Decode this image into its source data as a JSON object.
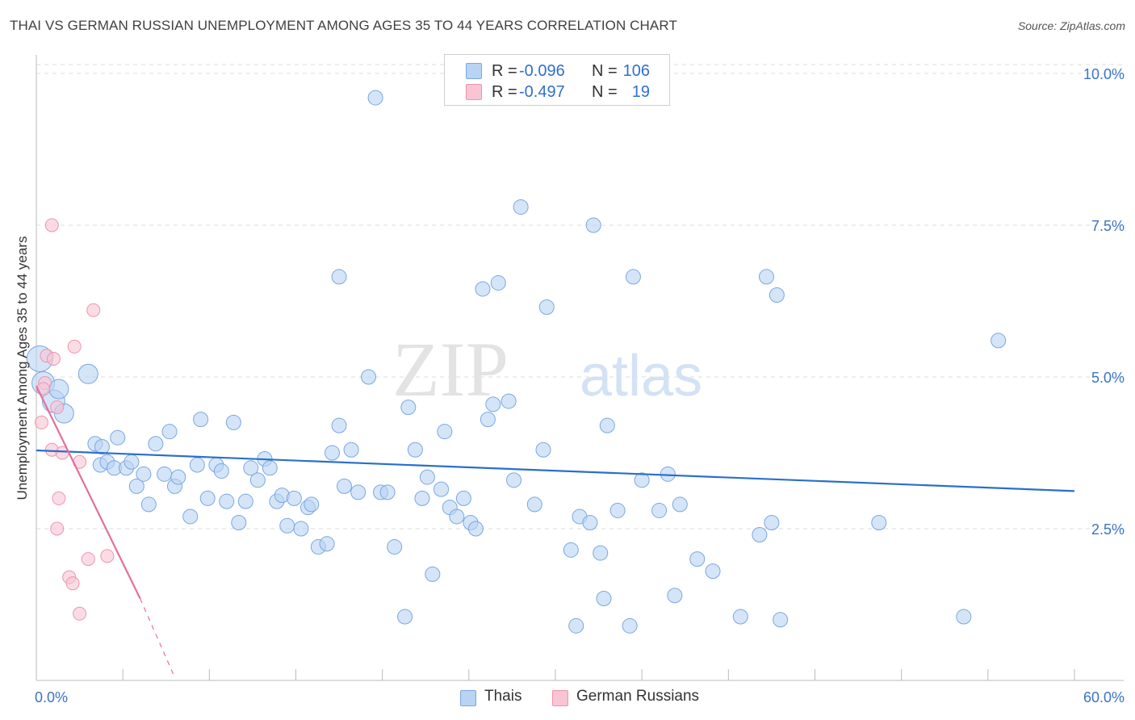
{
  "title": "THAI VS GERMAN RUSSIAN UNEMPLOYMENT AMONG AGES 35 TO 44 YEARS CORRELATION CHART",
  "source": "Source: ZipAtlas.com",
  "watermark": {
    "zip": "ZIP",
    "atlas": "atlas"
  },
  "legend": {
    "rows": [
      {
        "r_label": "R =",
        "r_value": "-0.096",
        "n_label": "N =",
        "n_value": "106"
      },
      {
        "r_label": "R =",
        "r_value": "-0.497",
        "n_label": "N =",
        "n_value": "19"
      }
    ]
  },
  "bottom_legend": {
    "thais": "Thais",
    "german_russians": "German Russians"
  },
  "colors": {
    "thais_fill": "#b9d3f3",
    "thais_stroke": "#7aa7e0",
    "thais_line": "#2a6fcc",
    "gr_fill": "#f9c4d4",
    "gr_stroke": "#ee94b0",
    "gr_line": "#e0709a",
    "axis_text": "#3a73c8",
    "grid": "#dddddd"
  },
  "chart_data": {
    "type": "scatter",
    "title": "THAI VS GERMAN RUSSIAN UNEMPLOYMENT AMONG AGES 35 TO 44 YEARS CORRELATION CHART",
    "xlabel": "",
    "ylabel": "Unemployment Among Ages 35 to 44 years",
    "xlim": [
      0,
      60
    ],
    "ylim": [
      0,
      10
    ],
    "x_tick_labels": [
      "0.0%",
      "60.0%"
    ],
    "y_ticks": [
      2.5,
      5.0,
      7.5,
      10.0
    ],
    "y_tick_labels": [
      "2.5%",
      "5.0%",
      "7.5%",
      "10.0%"
    ],
    "grid": true,
    "legend_position": "top-center",
    "series": [
      {
        "name": "Thais",
        "r": -0.096,
        "n": 106,
        "trend": {
          "x0": 0,
          "y0": 3.79,
          "x1": 60,
          "y1": 3.12
        },
        "points": [
          [
            0.2,
            5.3,
            3
          ],
          [
            0.4,
            4.9,
            2
          ],
          [
            1.0,
            4.6,
            2
          ],
          [
            1.3,
            4.8,
            1
          ],
          [
            1.6,
            4.4,
            1
          ],
          [
            3.0,
            5.05,
            1
          ],
          [
            3.4,
            3.9,
            0
          ],
          [
            3.7,
            3.55,
            0
          ],
          [
            3.8,
            3.85,
            0
          ],
          [
            4.1,
            3.6,
            0
          ],
          [
            4.5,
            3.5,
            0
          ],
          [
            4.7,
            4.0,
            0
          ],
          [
            5.2,
            3.5,
            0
          ],
          [
            5.5,
            3.6,
            0
          ],
          [
            5.8,
            3.2,
            0
          ],
          [
            6.2,
            3.4,
            0
          ],
          [
            6.5,
            2.9,
            0
          ],
          [
            6.9,
            3.9,
            0
          ],
          [
            7.4,
            3.4,
            0
          ],
          [
            7.7,
            4.1,
            0
          ],
          [
            8.0,
            3.2,
            0
          ],
          [
            8.2,
            3.35,
            0
          ],
          [
            8.9,
            2.7,
            0
          ],
          [
            9.3,
            3.55,
            0
          ],
          [
            9.5,
            4.3,
            0
          ],
          [
            9.9,
            3.0,
            0
          ],
          [
            10.4,
            3.55,
            0
          ],
          [
            10.7,
            3.45,
            0
          ],
          [
            11.0,
            2.95,
            0
          ],
          [
            11.4,
            4.25,
            0
          ],
          [
            11.7,
            2.6,
            0
          ],
          [
            12.1,
            2.95,
            0
          ],
          [
            12.4,
            3.5,
            0
          ],
          [
            12.8,
            3.3,
            0
          ],
          [
            13.2,
            3.65,
            0
          ],
          [
            13.5,
            3.5,
            0
          ],
          [
            13.9,
            2.95,
            0
          ],
          [
            14.2,
            3.05,
            0
          ],
          [
            14.5,
            2.55,
            0
          ],
          [
            14.9,
            3.0,
            0
          ],
          [
            15.3,
            2.5,
            0
          ],
          [
            15.7,
            2.85,
            0
          ],
          [
            15.9,
            2.9,
            0
          ],
          [
            16.3,
            2.2,
            0
          ],
          [
            16.8,
            2.25,
            0
          ],
          [
            17.1,
            3.75,
            0
          ],
          [
            17.5,
            4.2,
            0
          ],
          [
            17.5,
            6.65,
            0
          ],
          [
            17.8,
            3.2,
            0
          ],
          [
            18.2,
            3.8,
            0
          ],
          [
            18.6,
            3.1,
            0
          ],
          [
            19.2,
            5.0,
            0
          ],
          [
            19.6,
            9.6,
            0
          ],
          [
            19.9,
            3.1,
            0
          ],
          [
            20.3,
            3.1,
            0
          ],
          [
            20.7,
            2.2,
            0
          ],
          [
            21.3,
            1.05,
            0
          ],
          [
            21.5,
            4.5,
            0
          ],
          [
            21.9,
            3.8,
            0
          ],
          [
            22.3,
            3.0,
            0
          ],
          [
            22.6,
            3.35,
            0
          ],
          [
            22.9,
            1.75,
            0
          ],
          [
            23.4,
            3.15,
            0
          ],
          [
            23.6,
            4.1,
            0
          ],
          [
            23.9,
            2.85,
            0
          ],
          [
            24.3,
            2.7,
            0
          ],
          [
            24.7,
            3.0,
            0
          ],
          [
            25.1,
            2.6,
            0
          ],
          [
            25.4,
            2.5,
            0
          ],
          [
            25.8,
            6.45,
            0
          ],
          [
            26.1,
            4.3,
            0
          ],
          [
            26.4,
            4.55,
            0
          ],
          [
            26.7,
            6.55,
            0
          ],
          [
            27.3,
            4.6,
            0
          ],
          [
            27.6,
            3.3,
            0
          ],
          [
            28.0,
            7.8,
            0
          ],
          [
            28.8,
            2.9,
            0
          ],
          [
            29.3,
            3.8,
            0
          ],
          [
            29.5,
            6.15,
            0
          ],
          [
            30.9,
            2.15,
            0
          ],
          [
            31.2,
            0.9,
            0
          ],
          [
            31.4,
            2.7,
            0
          ],
          [
            32.0,
            2.6,
            0
          ],
          [
            32.2,
            7.5,
            0
          ],
          [
            32.6,
            2.1,
            0
          ],
          [
            32.8,
            1.35,
            0
          ],
          [
            33.0,
            4.2,
            0
          ],
          [
            33.6,
            2.8,
            0
          ],
          [
            34.3,
            0.9,
            0
          ],
          [
            34.5,
            6.65,
            0
          ],
          [
            35.0,
            3.3,
            0
          ],
          [
            36.0,
            2.8,
            0
          ],
          [
            36.5,
            3.4,
            0
          ],
          [
            36.9,
            1.4,
            0
          ],
          [
            37.2,
            2.9,
            0
          ],
          [
            38.2,
            2.0,
            0
          ],
          [
            39.1,
            1.8,
            0
          ],
          [
            40.7,
            1.05,
            0
          ],
          [
            41.8,
            2.4,
            0
          ],
          [
            42.2,
            6.65,
            0
          ],
          [
            42.5,
            2.6,
            0
          ],
          [
            42.8,
            6.35,
            0
          ],
          [
            43.0,
            1.0,
            0
          ],
          [
            53.6,
            1.05,
            0
          ],
          [
            55.6,
            5.6,
            0
          ],
          [
            48.7,
            2.6,
            0
          ]
        ]
      },
      {
        "name": "German Russians",
        "r": -0.497,
        "n": 19,
        "trend": {
          "x0": 0,
          "y0": 4.85,
          "x1": 6.0,
          "y1": 1.35,
          "dash_x1": 8.0,
          "dash_y1": 0.05
        },
        "points": [
          [
            0.3,
            4.25
          ],
          [
            0.5,
            4.9
          ],
          [
            0.6,
            5.35
          ],
          [
            0.9,
            3.8
          ],
          [
            0.9,
            7.5
          ],
          [
            1.0,
            5.3
          ],
          [
            1.2,
            4.5
          ],
          [
            1.3,
            3.0
          ],
          [
            1.2,
            2.5
          ],
          [
            1.5,
            3.75
          ],
          [
            1.9,
            1.7
          ],
          [
            2.1,
            1.6
          ],
          [
            2.2,
            5.5
          ],
          [
            2.5,
            3.6
          ],
          [
            2.5,
            1.1
          ],
          [
            3.0,
            2.0
          ],
          [
            3.3,
            6.1
          ],
          [
            4.1,
            2.05
          ],
          [
            0.4,
            4.8
          ]
        ]
      }
    ]
  }
}
